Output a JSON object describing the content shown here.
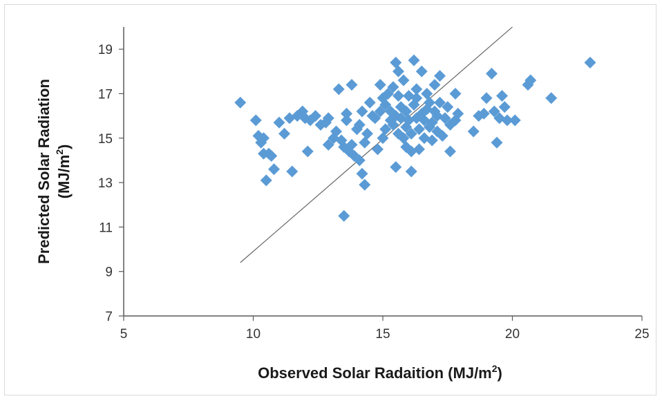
{
  "chart_data": {
    "type": "scatter",
    "xlabel_main": "Observed Solar Radaition  (MJ/m",
    "xlabel_sup": "2",
    "xlabel_end": ")",
    "ylabel_line1": "Predicted Solar Radiation",
    "ylabel_line2_main": "(MJ/m",
    "ylabel_line2_sup": "2",
    "ylabel_line2_end": ")",
    "xlim": [
      5,
      25
    ],
    "ylim": [
      7,
      20
    ],
    "x_ticks": [
      5,
      10,
      15,
      20,
      25
    ],
    "y_ticks": [
      7,
      9,
      11,
      13,
      15,
      17,
      19
    ],
    "grid": false,
    "legend": "none",
    "marker": "diamond",
    "marker_color": "#5b9bd5",
    "line_color": "#555555",
    "reference_line": {
      "x": [
        9.5,
        20.0
      ],
      "y": [
        9.4,
        20.0
      ]
    },
    "points": [
      [
        9.5,
        16.6
      ],
      [
        10.1,
        15.8
      ],
      [
        10.2,
        15.1
      ],
      [
        10.3,
        14.8
      ],
      [
        10.4,
        15.0
      ],
      [
        10.4,
        14.3
      ],
      [
        10.5,
        13.1
      ],
      [
        10.6,
        14.3
      ],
      [
        10.7,
        14.2
      ],
      [
        10.8,
        13.6
      ],
      [
        11.0,
        15.7
      ],
      [
        11.2,
        15.2
      ],
      [
        11.4,
        15.9
      ],
      [
        11.5,
        13.5
      ],
      [
        11.7,
        16.0
      ],
      [
        11.9,
        16.2
      ],
      [
        12.0,
        15.9
      ],
      [
        12.1,
        14.4
      ],
      [
        12.2,
        15.8
      ],
      [
        12.4,
        16.0
      ],
      [
        12.6,
        15.6
      ],
      [
        12.8,
        15.7
      ],
      [
        12.9,
        15.9
      ],
      [
        12.9,
        14.7
      ],
      [
        13.1,
        15.0
      ],
      [
        13.2,
        15.3
      ],
      [
        13.3,
        17.2
      ],
      [
        13.4,
        14.9
      ],
      [
        13.5,
        14.6
      ],
      [
        13.5,
        11.5
      ],
      [
        13.6,
        15.8
      ],
      [
        13.6,
        16.1
      ],
      [
        13.7,
        14.4
      ],
      [
        13.8,
        17.4
      ],
      [
        13.8,
        14.7
      ],
      [
        13.9,
        14.2
      ],
      [
        14.0,
        15.4
      ],
      [
        14.1,
        14.0
      ],
      [
        14.1,
        15.6
      ],
      [
        14.2,
        13.4
      ],
      [
        14.2,
        16.2
      ],
      [
        14.3,
        12.9
      ],
      [
        14.3,
        14.8
      ],
      [
        14.4,
        15.2
      ],
      [
        14.5,
        16.6
      ],
      [
        14.6,
        16.0
      ],
      [
        14.7,
        15.9
      ],
      [
        14.8,
        14.5
      ],
      [
        14.9,
        16.2
      ],
      [
        14.9,
        17.4
      ],
      [
        15.0,
        15.0
      ],
      [
        15.0,
        16.8
      ],
      [
        15.1,
        15.4
      ],
      [
        15.1,
        16.5
      ],
      [
        15.2,
        17.0
      ],
      [
        15.3,
        15.8
      ],
      [
        15.3,
        16.2
      ],
      [
        15.4,
        15.6
      ],
      [
        15.4,
        17.3
      ],
      [
        15.5,
        13.7
      ],
      [
        15.5,
        16.0
      ],
      [
        15.5,
        18.4
      ],
      [
        15.6,
        15.2
      ],
      [
        15.6,
        16.9
      ],
      [
        15.6,
        18.0
      ],
      [
        15.7,
        15.9
      ],
      [
        15.7,
        16.4
      ],
      [
        15.8,
        15.0
      ],
      [
        15.8,
        17.6
      ],
      [
        15.9,
        14.6
      ],
      [
        15.9,
        15.5
      ],
      [
        15.9,
        16.2
      ],
      [
        16.0,
        15.8
      ],
      [
        16.0,
        16.9
      ],
      [
        16.1,
        13.5
      ],
      [
        16.1,
        14.4
      ],
      [
        16.1,
        15.2
      ],
      [
        16.2,
        16.5
      ],
      [
        16.2,
        18.5
      ],
      [
        16.3,
        15.9
      ],
      [
        16.3,
        16.8
      ],
      [
        16.3,
        17.2
      ],
      [
        16.4,
        14.5
      ],
      [
        16.4,
        15.4
      ],
      [
        16.5,
        16.1
      ],
      [
        16.5,
        18.0
      ],
      [
        16.6,
        15.0
      ],
      [
        16.6,
        15.8
      ],
      [
        16.7,
        16.3
      ],
      [
        16.7,
        17.0
      ],
      [
        16.8,
        15.5
      ],
      [
        16.8,
        16.6
      ],
      [
        16.9,
        14.9
      ],
      [
        16.9,
        15.7
      ],
      [
        17.0,
        16.2
      ],
      [
        17.0,
        17.4
      ],
      [
        17.1,
        15.3
      ],
      [
        17.1,
        16.0
      ],
      [
        17.2,
        16.6
      ],
      [
        17.2,
        17.8
      ],
      [
        17.3,
        15.1
      ],
      [
        17.4,
        15.9
      ],
      [
        17.5,
        16.4
      ],
      [
        17.6,
        14.4
      ],
      [
        17.6,
        15.6
      ],
      [
        17.8,
        15.8
      ],
      [
        17.8,
        17.0
      ],
      [
        17.9,
        16.1
      ],
      [
        18.5,
        15.3
      ],
      [
        18.7,
        16.0
      ],
      [
        18.9,
        16.1
      ],
      [
        19.0,
        16.8
      ],
      [
        19.2,
        17.9
      ],
      [
        19.3,
        16.2
      ],
      [
        19.4,
        14.8
      ],
      [
        19.5,
        15.9
      ],
      [
        19.6,
        16.9
      ],
      [
        19.7,
        16.4
      ],
      [
        19.8,
        15.8
      ],
      [
        20.1,
        15.8
      ],
      [
        20.6,
        17.4
      ],
      [
        20.7,
        17.6
      ],
      [
        21.5,
        16.8
      ],
      [
        23.0,
        18.4
      ]
    ]
  }
}
